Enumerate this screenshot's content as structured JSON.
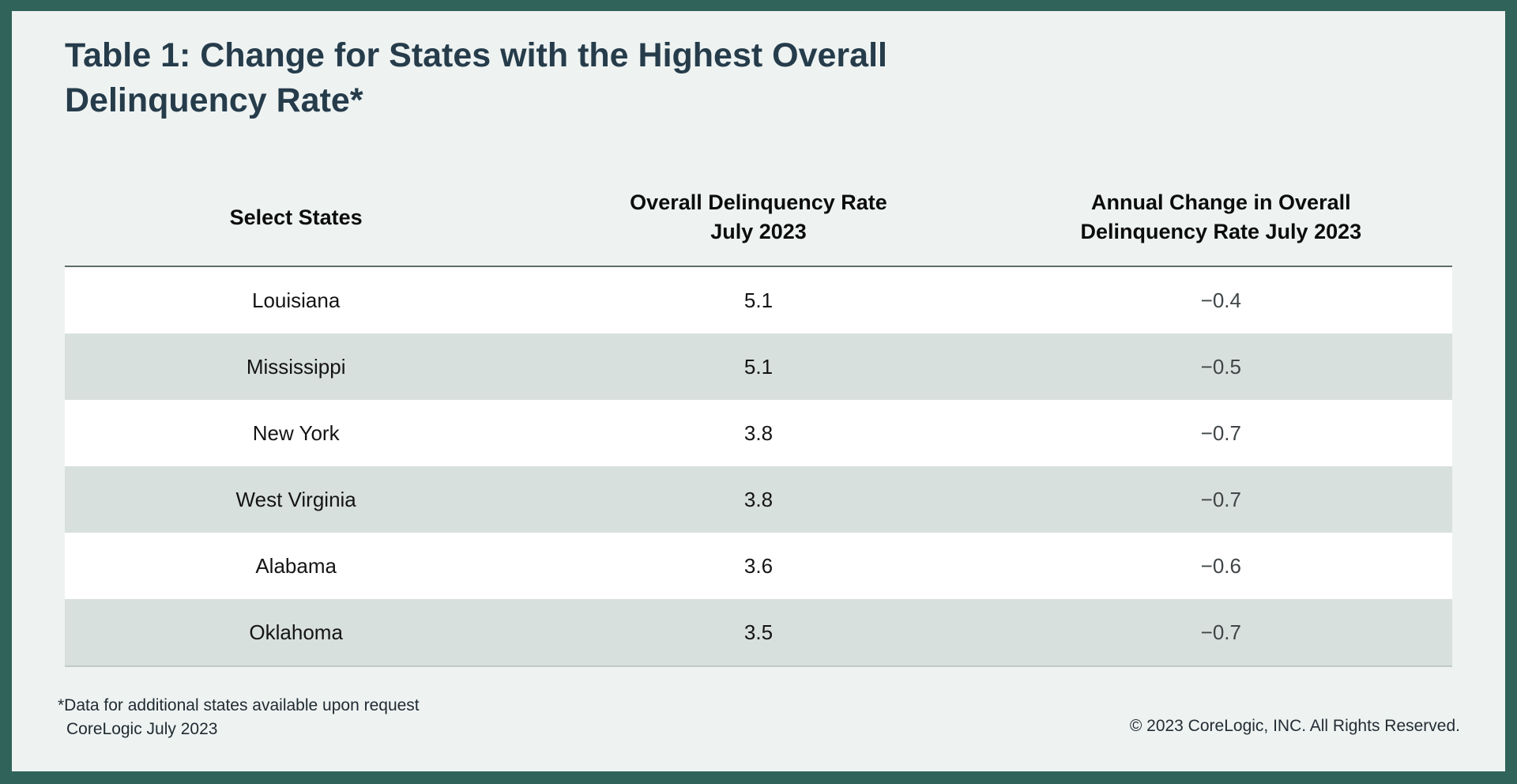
{
  "page": {
    "title": {
      "line1": "Table 1: Change for States with the Highest Overall",
      "line2": "Delinquency Rate*"
    },
    "colors": {
      "frame_border": "#30645a",
      "canvas_background": "#eef3f2",
      "row_stripe": "#d8e0dd",
      "title_text": "#263c4b",
      "header_rule": "#5d6c6a"
    }
  },
  "table": {
    "headers": [
      {
        "line1": "Select States",
        "line2": ""
      },
      {
        "line1": "Overall Delinquency Rate",
        "line2": "July 2023"
      },
      {
        "line1": "Annual Change in Overall",
        "line2": "Delinquency Rate July 2023"
      }
    ],
    "rows": [
      {
        "state": "Louisiana",
        "rate": "5.1",
        "change": "−0.4"
      },
      {
        "state": "Mississippi",
        "rate": "5.1",
        "change": "−0.5"
      },
      {
        "state": "New York",
        "rate": "3.8",
        "change": "−0.7"
      },
      {
        "state": "West Virginia",
        "rate": "3.8",
        "change": "−0.7"
      },
      {
        "state": "Alabama",
        "rate": "3.6",
        "change": "−0.6"
      },
      {
        "state": "Oklahoma",
        "rate": "3.5",
        "change": "−0.7"
      }
    ]
  },
  "footer": {
    "footnote_line1": "*Data for additional states available upon request",
    "footnote_line2": "CoreLogic July 2023",
    "copyright": "© 2023 CoreLogic, INC. All Rights Reserved."
  },
  "chart_data": {
    "type": "table",
    "title": "Table 1: Change for States with the Highest Overall Delinquency Rate*",
    "columns": [
      "Select States",
      "Overall Delinquency Rate July 2023",
      "Annual Change in Overall Delinquency Rate July 2023"
    ],
    "rows": [
      [
        "Louisiana",
        5.1,
        -0.4
      ],
      [
        "Mississippi",
        5.1,
        -0.5
      ],
      [
        "New York",
        3.8,
        -0.7
      ],
      [
        "West Virginia",
        3.8,
        -0.7
      ],
      [
        "Alabama",
        3.6,
        -0.6
      ],
      [
        "Oklahoma",
        3.5,
        -0.7
      ]
    ],
    "footnote": "*Data for additional states available upon request",
    "source": "CoreLogic July 2023"
  }
}
